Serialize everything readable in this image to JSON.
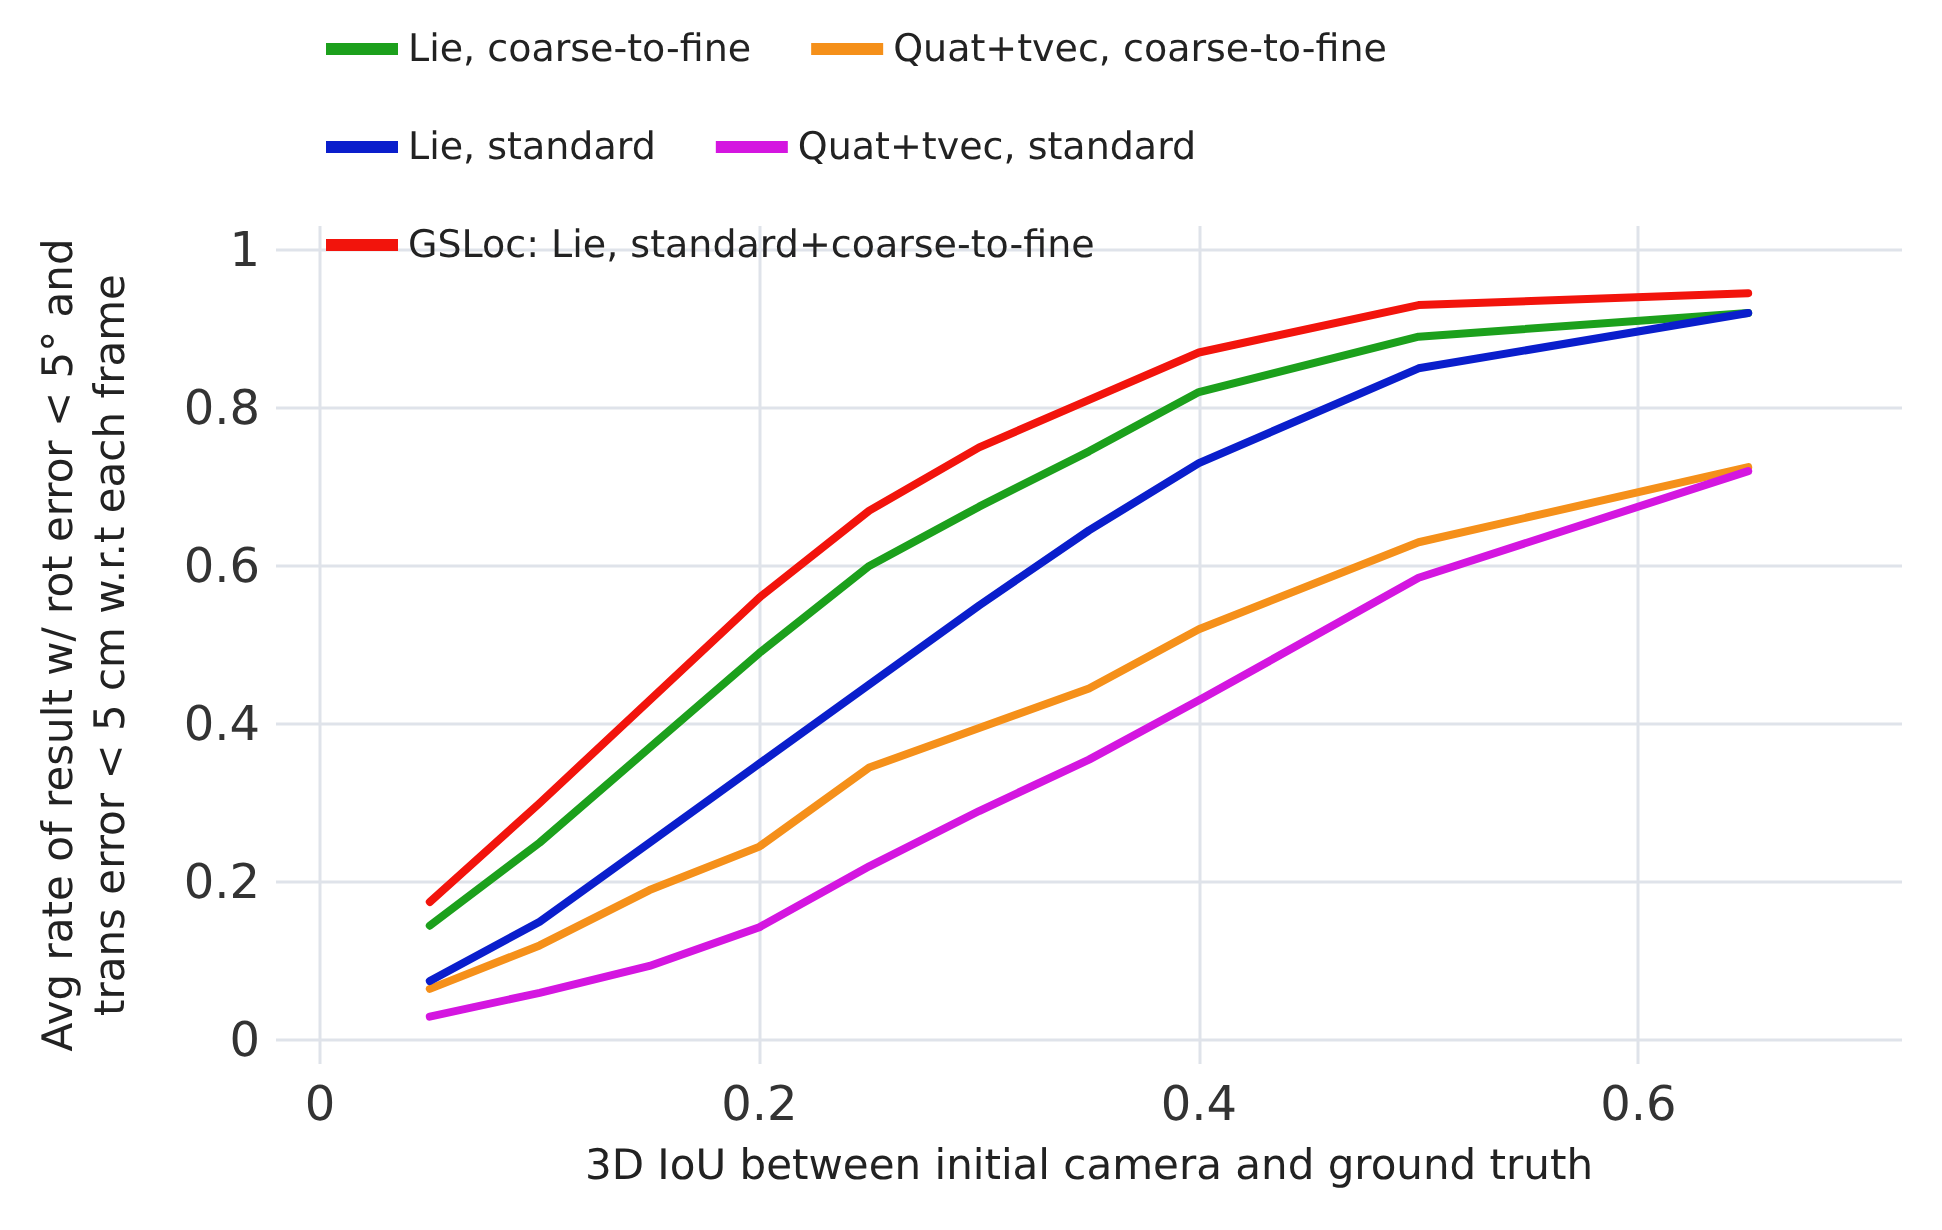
{
  "chart_data": {
    "type": "line",
    "xlabel": "3D IoU between initial camera and ground truth",
    "ylabel": "Avg rate of result w/ rot error < 5° and\ntrans error < 5 cm w.r.t each frame",
    "x": [
      0.05,
      0.1,
      0.15,
      0.2,
      0.25,
      0.3,
      0.35,
      0.4,
      0.5,
      0.65
    ],
    "series": [
      {
        "name": "Lie, coarse-to-fine",
        "color": "#1ca01c",
        "values": [
          0.145,
          0.25,
          0.37,
          0.49,
          0.6,
          0.675,
          0.745,
          0.82,
          0.89,
          0.92
        ]
      },
      {
        "name": "Quat+tvec, coarse-to-fine",
        "color": "#f5901a",
        "values": [
          0.065,
          0.12,
          0.19,
          0.245,
          0.345,
          0.395,
          0.445,
          0.52,
          0.63,
          0.725
        ]
      },
      {
        "name": "Lie, standard",
        "color": "#0a1ecc",
        "values": [
          0.075,
          0.15,
          0.25,
          0.35,
          0.45,
          0.55,
          0.645,
          0.73,
          0.85,
          0.92
        ]
      },
      {
        "name": "Quat+tvec, standard",
        "color": "#d416e0",
        "values": [
          0.03,
          0.06,
          0.094,
          0.143,
          0.22,
          0.29,
          0.355,
          0.43,
          0.585,
          0.72
        ]
      },
      {
        "name": "GSLoc: Lie, standard+coarse-to-fine",
        "color": "#f2140c",
        "values": [
          0.175,
          0.3,
          0.43,
          0.56,
          0.67,
          0.75,
          0.81,
          0.87,
          0.93,
          0.945
        ]
      }
    ],
    "xlim": [
      -0.02,
      0.72
    ],
    "xticks": [
      0,
      0.2,
      0.4,
      0.6
    ],
    "ylim": [
      -0.03,
      1.03
    ],
    "yticks": [
      0,
      0.2,
      0.4,
      0.6,
      0.8,
      1
    ],
    "grid": true,
    "legend": "top",
    "marker": "none",
    "line_style": "solid"
  }
}
